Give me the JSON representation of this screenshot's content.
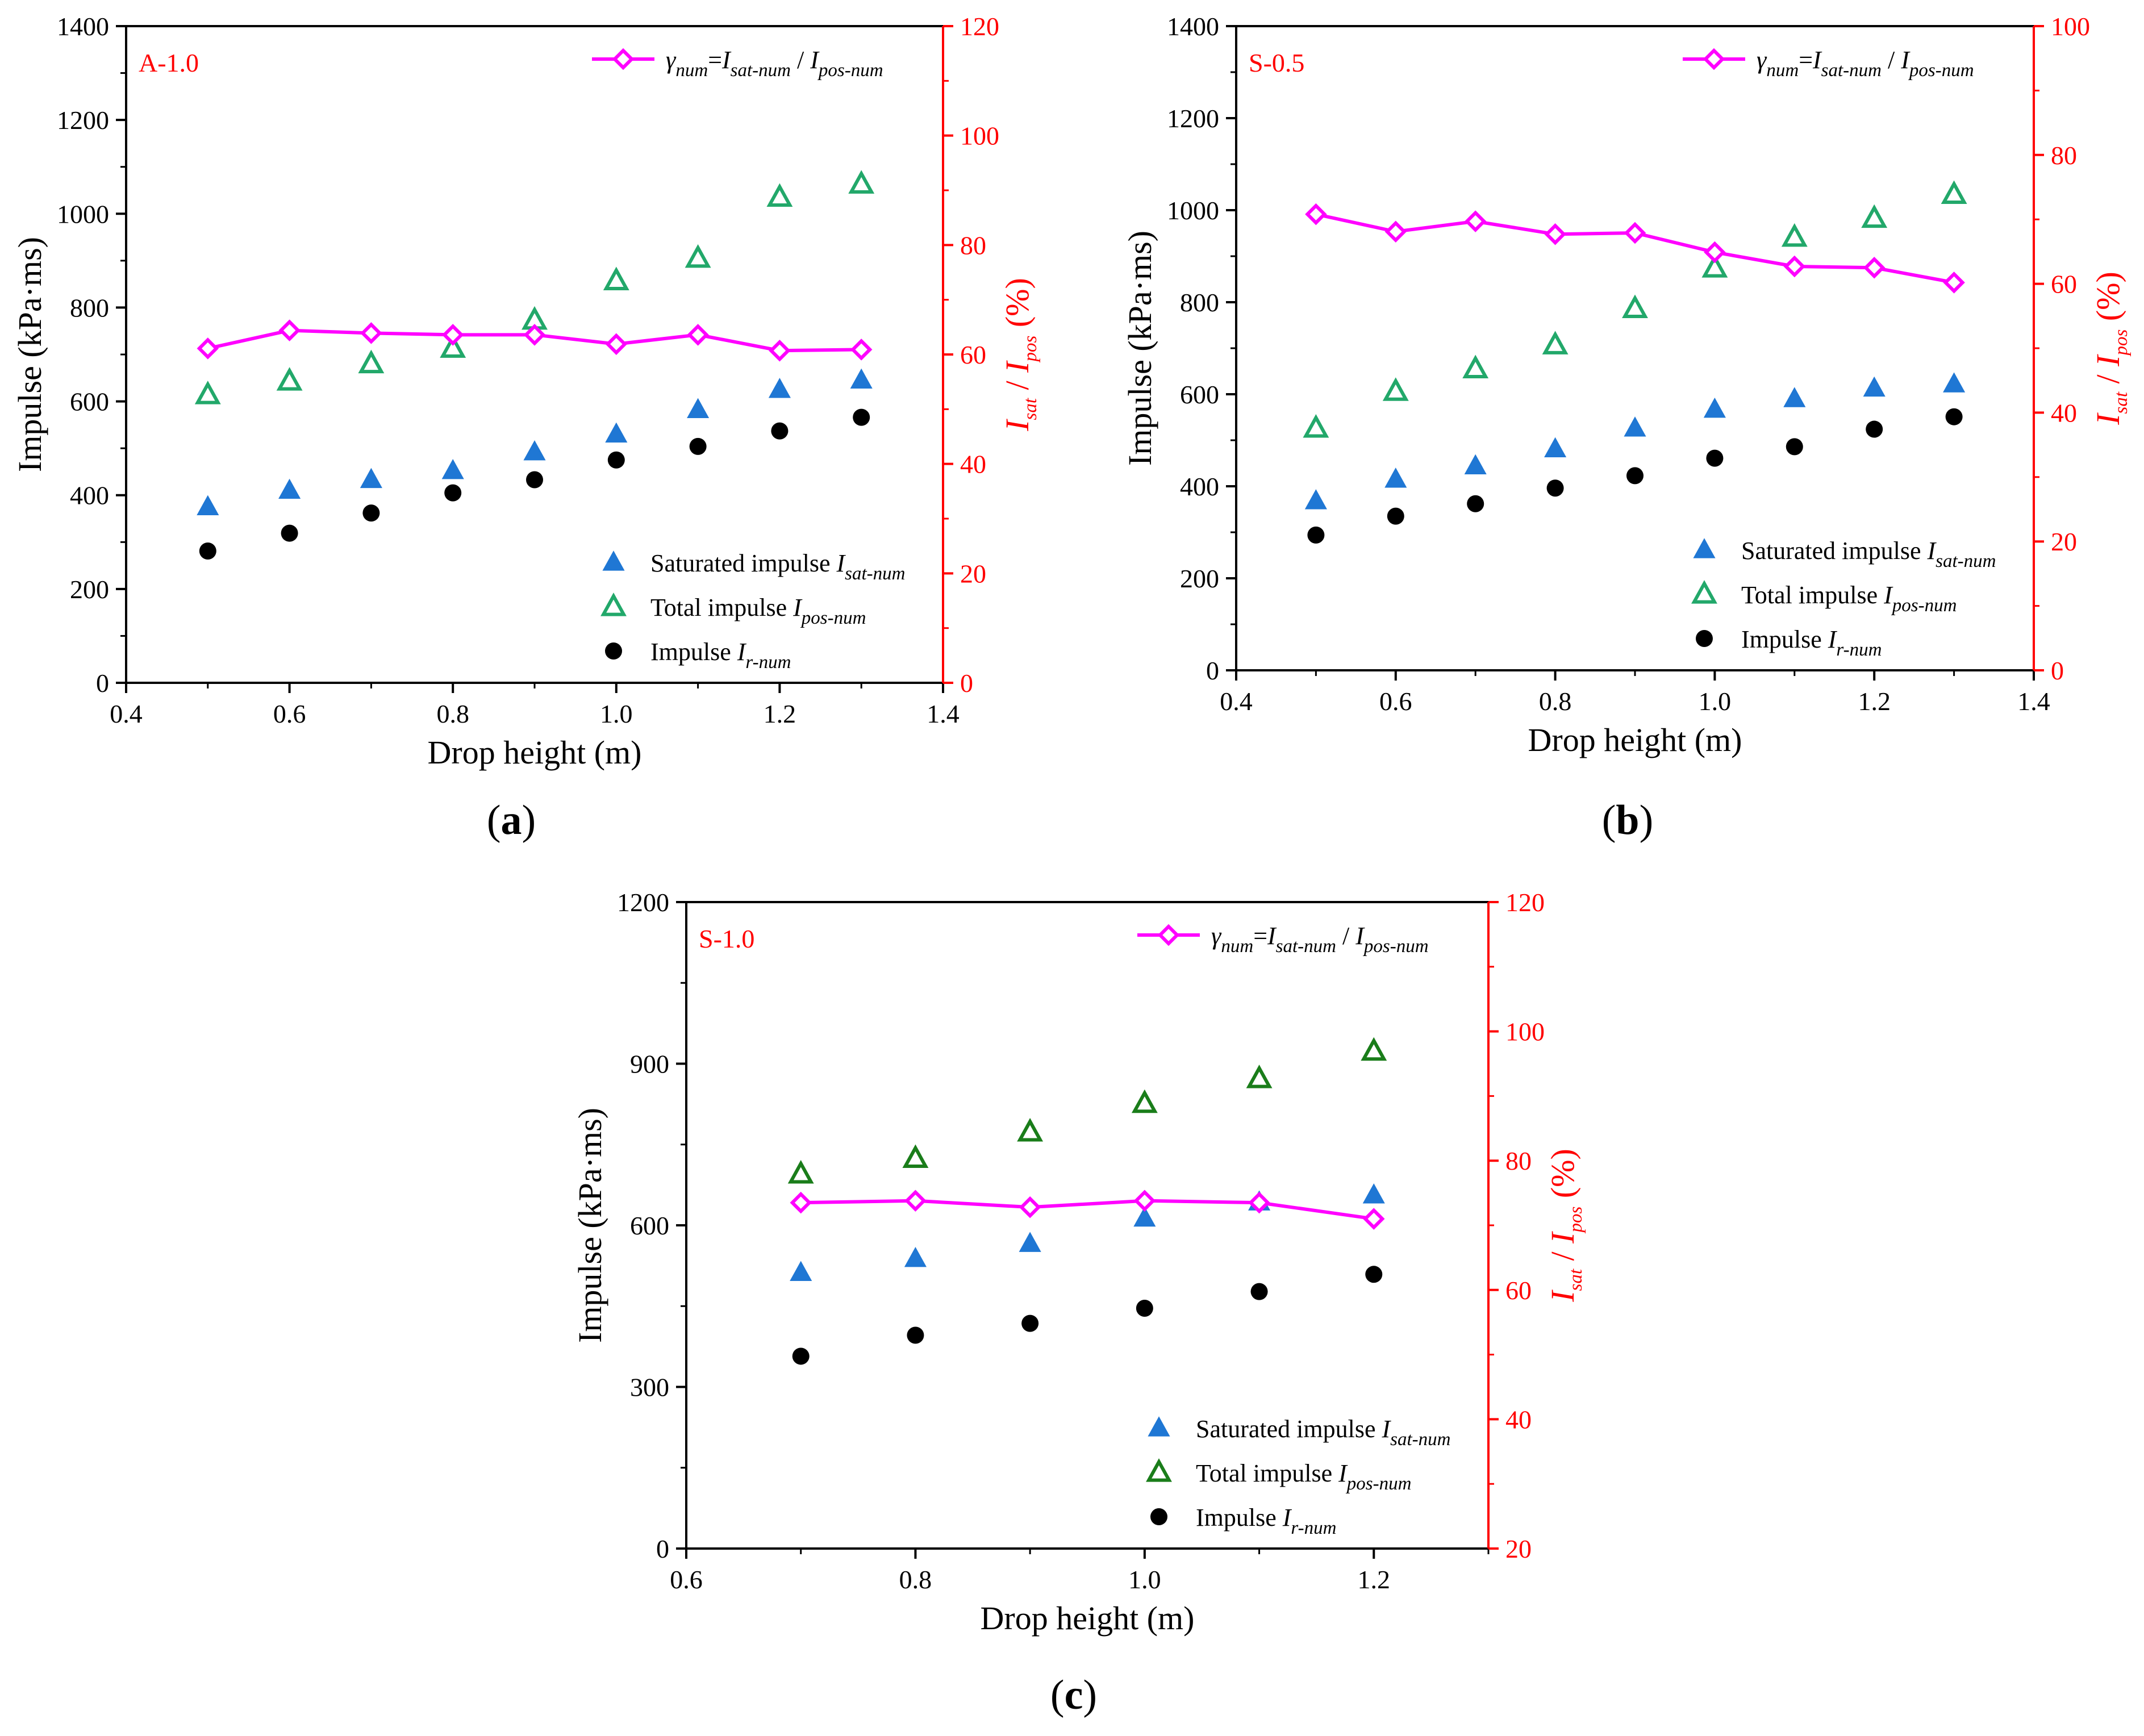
{
  "figure": {
    "colors": {
      "ratio_line": "#ff00ff",
      "saturated": "#1f77d4",
      "total_ab": "#22a86a",
      "total_c": "#1a7d1a",
      "impulse_r": "#000000",
      "right_axis": "#ff0000"
    },
    "icons": {
      "ratio_marker": "diamond-open",
      "saturated_marker": "triangle-filled",
      "total_marker": "triangle-open",
      "impulse_marker": "circle-filled"
    }
  },
  "chart_data": [
    {
      "panel": "a",
      "caption": {
        "open": "(",
        "letter": "a",
        "close": ")"
      },
      "type": "scatter",
      "title": "A-1.0",
      "xlabel": "Drop height (m)",
      "xlim": [
        0.4,
        1.4
      ],
      "xticks": [
        0.4,
        0.6,
        0.8,
        1.0,
        1.2,
        1.4
      ],
      "ylabel": "Impulse (kPa·ms)",
      "ylim": [
        0,
        1400
      ],
      "yticks": [
        0,
        200,
        400,
        600,
        800,
        1000,
        1200,
        1400
      ],
      "y2label": {
        "i1": "I",
        "s1": "sat",
        "slash": " / ",
        "i2": "I",
        "s2": "pos",
        "unit": " (%)"
      },
      "y2lim": [
        0,
        120
      ],
      "y2ticks": [
        0,
        20,
        40,
        60,
        80,
        100,
        120
      ],
      "x": [
        0.5,
        0.6,
        0.7,
        0.8,
        0.9,
        1.0,
        1.1,
        1.2,
        1.3
      ],
      "legend_ratio": {
        "g": "γ",
        "g_sub": "num",
        "eq": "=",
        "i1": "I",
        "s1": "sat-num",
        "slash": " / ",
        "i2": "I",
        "s2": "pos-num"
      },
      "series": [
        {
          "name": "Saturated impulse",
          "symbol": "I",
          "sub": "sat-num",
          "axis": "left",
          "marker": "triangle-filled",
          "color": "#1f77d4",
          "values": [
            375,
            410,
            433,
            452,
            492,
            530,
            582,
            625,
            645
          ]
        },
        {
          "name": "Total impulse",
          "symbol": "I",
          "sub": "pos-num",
          "axis": "left",
          "marker": "triangle-open",
          "color": "#22a86a",
          "values": [
            614,
            643,
            680,
            713,
            773,
            857,
            905,
            1035,
            1063
          ]
        },
        {
          "name": "Impulse",
          "symbol": "I",
          "sub": "r-num",
          "axis": "left",
          "marker": "circle-filled",
          "color": "#000000",
          "values": [
            281,
            319,
            362,
            405,
            433,
            475,
            504,
            537,
            566
          ]
        },
        {
          "name": "γnum=Isat-num / Ipos-num",
          "axis": "right",
          "marker": "diamond-open",
          "color": "#ff00ff",
          "line": true,
          "values": [
            61.1,
            64.4,
            63.9,
            63.6,
            63.6,
            61.9,
            63.6,
            60.7,
            60.9
          ]
        }
      ]
    },
    {
      "panel": "b",
      "caption": {
        "open": "(",
        "letter": "b",
        "close": ")"
      },
      "type": "scatter",
      "title": "S-0.5",
      "xlabel": "Drop height (m)",
      "xlim": [
        0.4,
        1.4
      ],
      "xticks": [
        0.4,
        0.6,
        0.8,
        1.0,
        1.2,
        1.4
      ],
      "ylabel": "Impulse (kPa·ms)",
      "ylim": [
        0,
        1400
      ],
      "yticks": [
        0,
        200,
        400,
        600,
        800,
        1000,
        1200,
        1400
      ],
      "y2label": {
        "i1": "I",
        "s1": "sat",
        "slash": " / ",
        "i2": "I",
        "s2": "pos",
        "unit": " (%)"
      },
      "y2lim": [
        0,
        100
      ],
      "y2ticks": [
        0,
        20,
        40,
        60,
        80,
        100
      ],
      "x": [
        0.5,
        0.6,
        0.7,
        0.8,
        0.9,
        1.0,
        1.1,
        1.2,
        1.3
      ],
      "legend_ratio": {
        "g": "γ",
        "g_sub": "num",
        "eq": "=",
        "i1": "I",
        "s1": "sat-num",
        "slash": " / ",
        "i2": "I",
        "s2": "pos-num"
      },
      "series": [
        {
          "name": "Saturated impulse",
          "symbol": "I",
          "sub": "sat-num",
          "axis": "left",
          "marker": "triangle-filled",
          "color": "#1f77d4",
          "values": [
            368,
            415,
            444,
            481,
            526,
            567,
            590,
            613,
            622
          ]
        },
        {
          "name": "Total impulse",
          "symbol": "I",
          "sub": "pos-num",
          "axis": "left",
          "marker": "triangle-open",
          "color": "#22a86a",
          "values": [
            526,
            606,
            655,
            707,
            786,
            874,
            941,
            982,
            1034
          ]
        },
        {
          "name": "Impulse",
          "symbol": "I",
          "sub": "r-num",
          "axis": "left",
          "marker": "circle-filled",
          "color": "#000000",
          "values": [
            294,
            335,
            362,
            396,
            423,
            461,
            486,
            524,
            551
          ]
        },
        {
          "name": "γnum=Isat-num / Ipos-num",
          "axis": "right",
          "marker": "diamond-open",
          "color": "#ff00ff",
          "line": true,
          "values": [
            70.8,
            68.1,
            69.7,
            67.7,
            67.9,
            64.9,
            62.7,
            62.5,
            60.2
          ]
        }
      ]
    },
    {
      "panel": "c",
      "caption": {
        "open": "(",
        "letter": "c",
        "close": ")"
      },
      "type": "scatter",
      "title": "S-1.0",
      "xlabel": "Drop height (m)",
      "xlim": [
        0.6,
        1.3
      ],
      "xticks": [
        0.6,
        0.8,
        1.0,
        1.2
      ],
      "ylabel": "Impulse (kPa·ms)",
      "ylim": [
        0,
        1200
      ],
      "yticks": [
        0,
        300,
        600,
        900,
        1200
      ],
      "y2label": {
        "i1": "I",
        "s1": "sat",
        "slash": " / ",
        "i2": "I",
        "s2": "pos",
        "unit": " (%)"
      },
      "y2lim": [
        20,
        120
      ],
      "y2ticks": [
        20,
        40,
        60,
        80,
        100,
        120
      ],
      "x": [
        0.7,
        0.8,
        0.9,
        1.0,
        1.1,
        1.2
      ],
      "legend_ratio": {
        "g": "γ",
        "g_sub": "num",
        "eq": "=",
        "i1": "I",
        "s1": "sat-num",
        "slash": " / ",
        "i2": "I",
        "s2": "pos-num"
      },
      "series": [
        {
          "name": "Saturated impulse",
          "symbol": "I",
          "sub": "sat-num",
          "axis": "left",
          "marker": "triangle-filled",
          "color": "#1f77d4",
          "values": [
            512,
            538,
            566,
            613,
            643,
            656
          ]
        },
        {
          "name": "Total impulse",
          "symbol": "I",
          "sub": "pos-num",
          "axis": "left",
          "marker": "triangle-open",
          "color": "#1a7d1a",
          "values": [
            695,
            724,
            773,
            826,
            872,
            923
          ]
        },
        {
          "name": "Impulse",
          "symbol": "I",
          "sub": "r-num",
          "axis": "left",
          "marker": "circle-filled",
          "color": "#000000",
          "values": [
            357,
            396,
            418,
            446,
            477,
            509
          ]
        },
        {
          "name": "γnum=Isat-num / Ipos-num",
          "axis": "right",
          "marker": "diamond-open",
          "color": "#ff00ff",
          "line": true,
          "values": [
            73.5,
            73.8,
            72.8,
            73.8,
            73.5,
            71.0
          ]
        }
      ]
    }
  ]
}
